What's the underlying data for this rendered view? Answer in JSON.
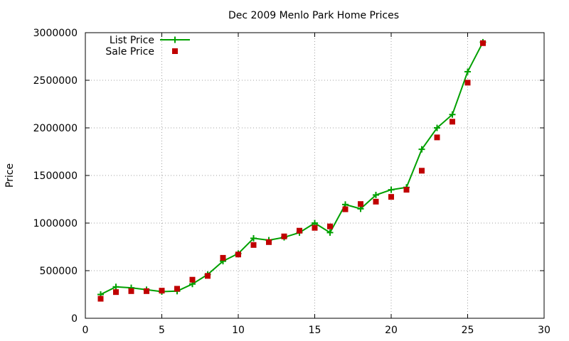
{
  "chart_data": {
    "type": "line",
    "title": "Dec 2009 Menlo Park Home Prices",
    "xlabel": "",
    "ylabel": "Price",
    "xlim": [
      0,
      30
    ],
    "ylim": [
      0,
      3000000
    ],
    "x_ticks": [
      0,
      5,
      10,
      15,
      20,
      25,
      30
    ],
    "y_ticks": [
      0,
      500000,
      1000000,
      1500000,
      2000000,
      2500000,
      3000000
    ],
    "grid": true,
    "legend_position": "top-left",
    "series": [
      {
        "name": "List Price",
        "style": "line-with-plus-markers",
        "color": "#00a000",
        "x": [
          1,
          2,
          3,
          4,
          5,
          6,
          7,
          8,
          9,
          10,
          11,
          12,
          13,
          14,
          15,
          16,
          17,
          18,
          19,
          20,
          21,
          22,
          23,
          24,
          25,
          26
        ],
        "y": [
          250000,
          330000,
          320000,
          300000,
          280000,
          285000,
          360000,
          460000,
          600000,
          680000,
          840000,
          820000,
          850000,
          900000,
          1000000,
          900000,
          1195000,
          1150000,
          1295000,
          1350000,
          1375000,
          1775000,
          2000000,
          2140000,
          2590000,
          2900000
        ]
      },
      {
        "name": "Sale Price",
        "style": "square-markers",
        "color": "#c00000",
        "x": [
          1,
          2,
          3,
          4,
          5,
          6,
          7,
          8,
          9,
          10,
          11,
          12,
          13,
          14,
          15,
          16,
          17,
          18,
          19,
          20,
          21,
          22,
          23,
          24,
          25,
          26
        ],
        "y": [
          205000,
          275000,
          285000,
          285000,
          290000,
          310000,
          405000,
          445000,
          635000,
          670000,
          770000,
          800000,
          860000,
          920000,
          950000,
          965000,
          1145000,
          1200000,
          1225000,
          1275000,
          1350000,
          1550000,
          1900000,
          2065000,
          2475000,
          2890000
        ]
      }
    ]
  }
}
